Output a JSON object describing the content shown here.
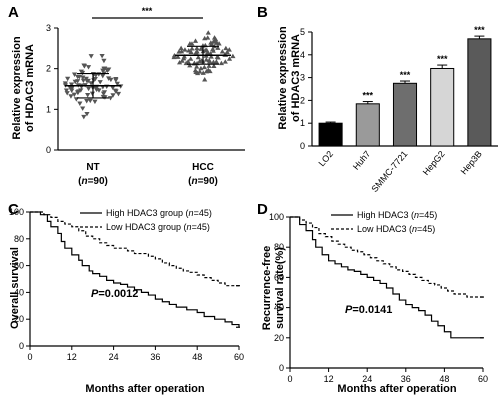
{
  "chart_data": [
    {
      "id": "A",
      "type": "scatter",
      "panel_label": "A",
      "ylabel": "Relative expression of HDAC3 mRNA",
      "ylabel_lines": [
        "Relative expression",
        "of HDAC3 mRNA"
      ],
      "ylim": [
        0,
        3
      ],
      "yticks": [
        "0",
        "1",
        "2",
        "3"
      ],
      "groups": [
        {
          "name": "NT",
          "n_label": "(n=90)",
          "n_prefix": "(",
          "n_italic": "n",
          "n_suffix": "=90)",
          "mean": 1.58,
          "sd": 0.3,
          "n": 90,
          "color": "#555555",
          "marker": "triangle-down"
        },
        {
          "name": "HCC",
          "n_label": "(n=90)",
          "n_prefix": "(",
          "n_italic": "n",
          "n_suffix": "=90)",
          "mean": 2.33,
          "sd": 0.22,
          "n": 90,
          "color": "#555555",
          "marker": "triangle-up"
        }
      ],
      "significance": "***"
    },
    {
      "id": "B",
      "type": "bar",
      "panel_label": "B",
      "ylabel": "Relative expression of HDAC3 mRNA",
      "ylabel_lines": [
        "Relative expression",
        "of HDAC3 mRNA"
      ],
      "ylim": [
        0,
        5
      ],
      "yticks": [
        "0",
        "1",
        "2",
        "3",
        "4",
        "5"
      ],
      "categories": [
        "LO2",
        "Huh7",
        "SMMC-7721",
        "HepG2",
        "Hep3B"
      ],
      "values": [
        1.0,
        1.85,
        2.75,
        3.4,
        4.7
      ],
      "errors": [
        0.05,
        0.1,
        0.1,
        0.15,
        0.12
      ],
      "colors": [
        "#000000",
        "#9a9a9a",
        "#6e6e6e",
        "#d6d6d6",
        "#5a5a5a"
      ],
      "significance": [
        "",
        "***",
        "***",
        "***",
        "***"
      ]
    },
    {
      "id": "C",
      "type": "line",
      "panel_label": "C",
      "ylabel": "Overall survival",
      "xlabel": "Months after operation",
      "xlim": [
        0,
        60
      ],
      "ylim": [
        0,
        100
      ],
      "xticks": [
        "0",
        "12",
        "24",
        "36",
        "48",
        "60"
      ],
      "yticks": [
        "0",
        "20",
        "40",
        "60",
        "80",
        "100"
      ],
      "legend": [
        {
          "label": "High HDAC3 group (n=45)",
          "prefix": "High HDAC3 group (",
          "italic": "n",
          "suffix": "=45)",
          "style": "solid"
        },
        {
          "label": "Low HDAC3 group (n=45)",
          "prefix": "Low HDAC3 group (",
          "italic": "n",
          "suffix": "=45)",
          "style": "dashed"
        }
      ],
      "p_value": "=0.0012",
      "p_symbol": "P",
      "series": [
        {
          "name": "High HDAC3 group (n=45)",
          "style": "solid",
          "x": [
            0,
            3,
            5,
            6,
            8,
            9,
            10,
            12,
            14,
            15,
            17,
            18,
            20,
            22,
            24,
            26,
            28,
            30,
            32,
            34,
            36,
            38,
            40,
            42,
            45,
            48,
            50,
            53,
            56,
            58,
            60
          ],
          "y": [
            100,
            98,
            93,
            89,
            84,
            78,
            73,
            68,
            64,
            60,
            56,
            54,
            52,
            49,
            47,
            46,
            44,
            42,
            40,
            38,
            35,
            33,
            31,
            29,
            27,
            25,
            22,
            20,
            18,
            16,
            14
          ]
        },
        {
          "name": "Low HDAC3 group (n=45)",
          "style": "dashed",
          "x": [
            0,
            4,
            6,
            8,
            10,
            12,
            14,
            16,
            18,
            20,
            22,
            24,
            26,
            28,
            30,
            32,
            34,
            36,
            38,
            40,
            42,
            44,
            46,
            48,
            50,
            52,
            54,
            56,
            58,
            60
          ],
          "y": [
            100,
            98,
            96,
            93,
            91,
            89,
            86,
            82,
            80,
            77,
            75,
            73,
            73,
            71,
            69,
            69,
            67,
            65,
            62,
            60,
            58,
            56,
            55,
            53,
            51,
            49,
            47,
            45,
            45,
            45
          ]
        }
      ]
    },
    {
      "id": "D",
      "type": "line",
      "panel_label": "D",
      "ylabel": "Recurrence-free survival rate(%)",
      "ylabel_lines": [
        "Recurrence-free",
        "survival rate(%)"
      ],
      "xlabel": "Months after operation",
      "xlim": [
        0,
        60
      ],
      "ylim": [
        0,
        100
      ],
      "xticks": [
        "0",
        "12",
        "24",
        "36",
        "48",
        "60"
      ],
      "yticks": [
        "0",
        "20",
        "40",
        "60",
        "80",
        "100"
      ],
      "legend": [
        {
          "label": "High HDAC3 (n=45)",
          "prefix": "High HDAC3 (",
          "italic": "n",
          "suffix": "=45)",
          "style": "solid"
        },
        {
          "label": "Low HDAC3 (n=45)",
          "prefix": "Low HDAC3 (",
          "italic": "n",
          "suffix": "=45)",
          "style": "dashed"
        }
      ],
      "p_value": "=0.0141",
      "p_symbol": "P",
      "series": [
        {
          "name": "High HDAC3 (n=45)",
          "style": "solid",
          "x": [
            0,
            3,
            5,
            7,
            8,
            10,
            12,
            14,
            16,
            18,
            20,
            22,
            24,
            26,
            28,
            30,
            32,
            34,
            36,
            38,
            40,
            42,
            44,
            46,
            48,
            50,
            60
          ],
          "y": [
            100,
            95,
            91,
            85,
            80,
            75,
            71,
            69,
            67,
            65,
            64,
            62,
            60,
            58,
            56,
            53,
            49,
            45,
            42,
            40,
            38,
            35,
            31,
            28,
            24,
            20,
            20
          ]
        },
        {
          "name": "Low HDAC3 (n=45)",
          "style": "dashed",
          "x": [
            0,
            3,
            5,
            7,
            9,
            11,
            13,
            15,
            17,
            19,
            21,
            23,
            25,
            27,
            29,
            31,
            33,
            35,
            37,
            39,
            41,
            43,
            45,
            47,
            49,
            51,
            53,
            55,
            58,
            60
          ],
          "y": [
            100,
            98,
            96,
            93,
            89,
            87,
            84,
            82,
            80,
            78,
            77,
            75,
            73,
            71,
            69,
            67,
            65,
            64,
            62,
            60,
            58,
            56,
            55,
            53,
            51,
            49,
            49,
            47,
            47,
            47
          ]
        }
      ]
    }
  ]
}
